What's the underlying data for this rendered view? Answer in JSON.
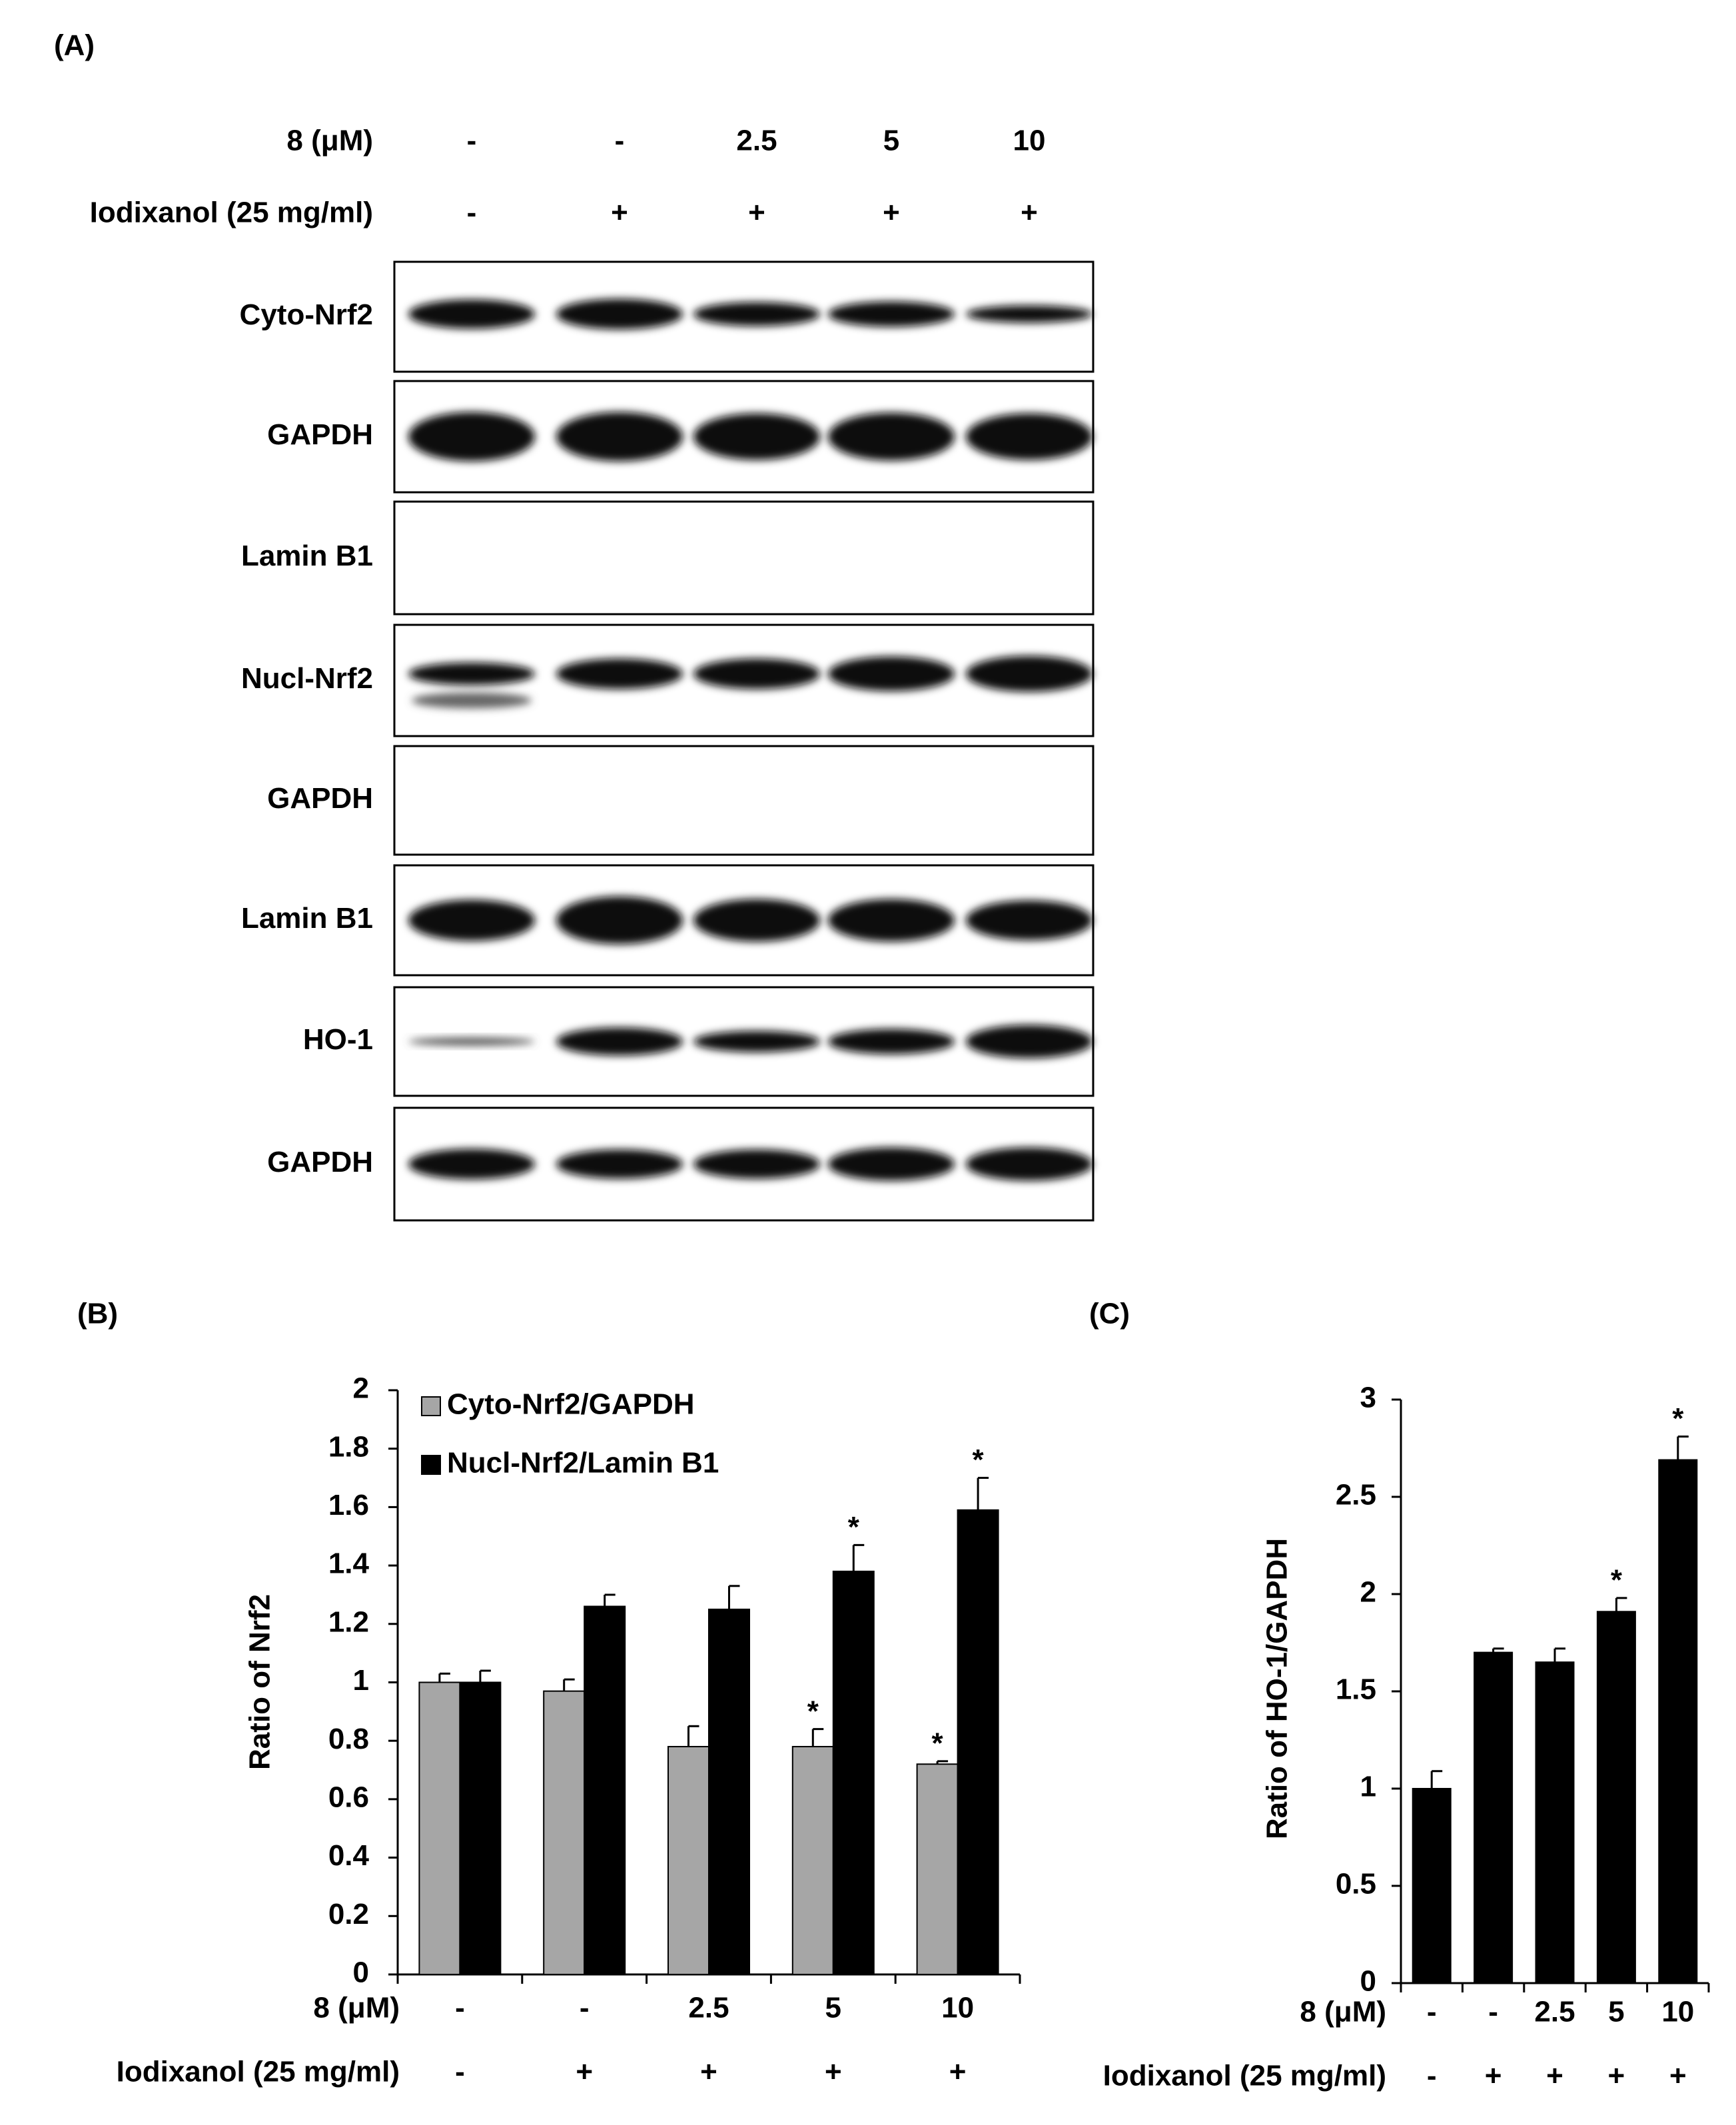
{
  "blot": {
    "label": "(A)",
    "conditions": [
      {
        "label": "8 (μM)",
        "lanes": [
          "-",
          "-",
          "2.5",
          "5",
          "10"
        ]
      },
      {
        "label": "Iodixanol (25 mg/ml)",
        "lanes": [
          "-",
          "+",
          "+",
          "+",
          "+"
        ]
      }
    ],
    "rows": [
      "Cyto-Nrf2",
      "GAPDH",
      "Lamin B1",
      "Nucl-Nrf2",
      "GAPDH",
      "Lamin B1",
      "HO-1",
      "GAPDH"
    ]
  },
  "chart_data": [
    {
      "type": "bar",
      "label": "(B)",
      "ylabel": "Ratio of Nrf2",
      "category_label": "8 (μM)",
      "categories": [
        "-",
        "-",
        "2.5",
        "5",
        "10"
      ],
      "category_label_2": "Iodixanol (25 mg/ml)",
      "categories_2": [
        "-",
        "+",
        "+",
        "+",
        "+"
      ],
      "series": [
        {
          "name": "Cyto-Nrf2/GAPDH",
          "color": "#a6a6a6",
          "values": [
            1.0,
            0.97,
            0.78,
            0.78,
            0.72
          ],
          "errors": [
            0.03,
            0.04,
            0.07,
            0.06,
            0.01
          ],
          "significance": [
            null,
            null,
            null,
            "*",
            "*"
          ]
        },
        {
          "name": "Nucl-Nrf2/Lamin B1",
          "color": "#000000",
          "values": [
            1.0,
            1.26,
            1.25,
            1.38,
            1.59
          ],
          "errors": [
            0.04,
            0.04,
            0.08,
            0.09,
            0.11
          ],
          "significance": [
            null,
            null,
            null,
            "*",
            "*"
          ]
        }
      ],
      "ylim": [
        0,
        2
      ],
      "yticks": [
        0,
        0.2,
        0.4,
        0.6,
        0.8,
        1,
        1.2,
        1.4,
        1.6,
        1.8,
        2
      ],
      "legend": "top-left"
    },
    {
      "type": "bar",
      "label": "(C)",
      "ylabel": "Ratio of HO-1/GAPDH",
      "category_label": "8 (μM)",
      "categories": [
        "-",
        "-",
        "2.5",
        "5",
        "10"
      ],
      "category_label_2": "Iodixanol (25 mg/ml)",
      "categories_2": [
        "-",
        "+",
        "+",
        "+",
        "+"
      ],
      "series": [
        {
          "color": "#000000",
          "values": [
            1.0,
            1.7,
            1.65,
            1.91,
            2.69
          ],
          "errors": [
            0.09,
            0.02,
            0.07,
            0.07,
            0.12
          ],
          "significance": [
            null,
            null,
            null,
            "*",
            "*"
          ]
        }
      ],
      "ylim": [
        0,
        3
      ],
      "yticks": [
        0,
        0.5,
        1,
        1.5,
        2,
        2.5,
        3
      ]
    }
  ]
}
